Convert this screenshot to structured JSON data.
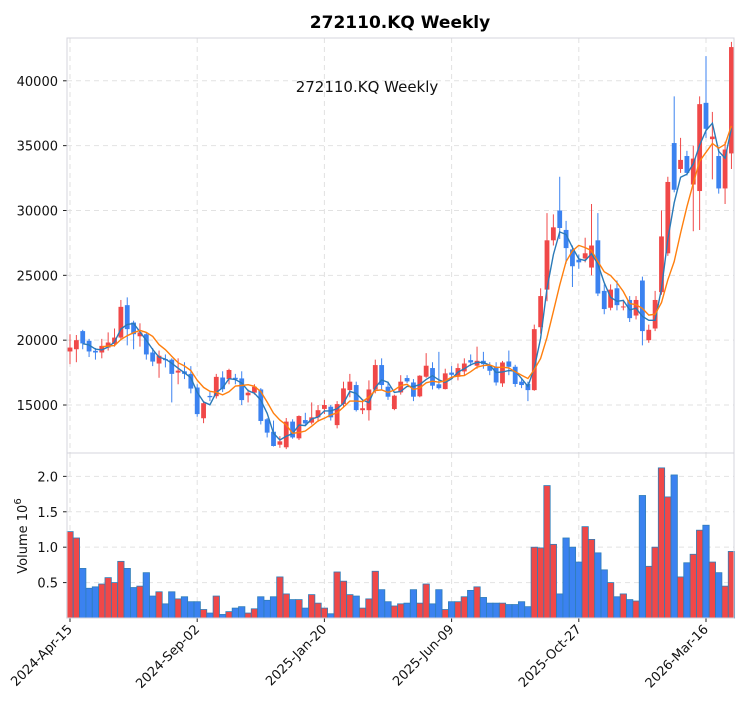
{
  "chart_data": {
    "type": "candlestick",
    "title": "272110.KQ  Weekly",
    "inner_title": "272110.KQ  Weekly",
    "colors": {
      "up": "#f04848",
      "down": "#3b82f0",
      "edge": "#2f7db8",
      "ma_short": "#2a7ab8",
      "ma_long": "#ff7f0e",
      "grid": "#e2e2e2"
    },
    "moving_averages": [
      {
        "window": 3,
        "color_key": "ma_short"
      },
      {
        "window": 6,
        "color_key": "ma_long"
      }
    ],
    "price_axis": {
      "ylim": [
        11300,
        43300
      ],
      "ticks": [
        15000,
        20000,
        25000,
        30000,
        35000,
        40000
      ],
      "tick_labels": [
        "15000",
        "20000",
        "25000",
        "30000",
        "35000",
        "40000"
      ]
    },
    "volume_axis": {
      "ylim": [
        0,
        2.33
      ],
      "ticks": [
        0.5,
        1.0,
        1.5,
        2.0
      ],
      "tick_labels": [
        "0.5",
        "1.0",
        "1.5",
        "2.0"
      ],
      "ylabel": "Volume  10",
      "ylabel_exp": "6"
    },
    "xticks": [
      {
        "index": 0,
        "label": "2024-Apr-15"
      },
      {
        "index": 20,
        "label": "2024-Sep-02"
      },
      {
        "index": 40,
        "label": "2025-Jan-20"
      },
      {
        "index": 60,
        "label": "2025-Jun-09"
      },
      {
        "index": 80,
        "label": "2025-Oct-27"
      },
      {
        "index": 100,
        "label": "2026-Mar-16"
      }
    ],
    "ohlc_fields": [
      "open",
      "high",
      "low",
      "close"
    ],
    "ohlc": [
      [
        19130,
        20460,
        18150,
        19430
      ],
      [
        19300,
        20400,
        18300,
        20000
      ],
      [
        20700,
        20800,
        19300,
        19750
      ],
      [
        19950,
        20100,
        18700,
        19130
      ],
      [
        19180,
        19400,
        18500,
        19050
      ],
      [
        19050,
        20100,
        18600,
        19560
      ],
      [
        19430,
        20600,
        19200,
        19820
      ],
      [
        19700,
        20900,
        19500,
        20200
      ],
      [
        20200,
        23100,
        20000,
        22570
      ],
      [
        22700,
        23300,
        19600,
        20850
      ],
      [
        21360,
        21500,
        19300,
        20460
      ],
      [
        20300,
        21300,
        19500,
        20600
      ],
      [
        20460,
        20600,
        18500,
        18900
      ],
      [
        19050,
        19400,
        18000,
        18350
      ],
      [
        18200,
        19200,
        17100,
        18800
      ],
      [
        18550,
        18900,
        17900,
        18460
      ],
      [
        18500,
        18600,
        15200,
        17400
      ],
      [
        17500,
        18600,
        16600,
        17650
      ],
      [
        17600,
        18300,
        17000,
        17400
      ],
      [
        17400,
        18000,
        15900,
        16270
      ],
      [
        16350,
        16600,
        14100,
        14300
      ],
      [
        13980,
        15200,
        13600,
        15140
      ],
      [
        15700,
        16000,
        15300,
        15600
      ],
      [
        15680,
        17400,
        15500,
        17170
      ],
      [
        17120,
        17600,
        16000,
        16220
      ],
      [
        17000,
        17800,
        16600,
        17700
      ],
      [
        17100,
        17400,
        16600,
        16980
      ],
      [
        17050,
        17600,
        15000,
        15380
      ],
      [
        15750,
        16200,
        15200,
        15950
      ],
      [
        15950,
        16600,
        15800,
        16410
      ],
      [
        16200,
        16300,
        13500,
        13770
      ],
      [
        13900,
        14000,
        12500,
        12870
      ],
      [
        12940,
        13800,
        11800,
        11840
      ],
      [
        11940,
        12600,
        11700,
        12200
      ],
      [
        11740,
        14000,
        11600,
        13720
      ],
      [
        13720,
        13900,
        12400,
        12500
      ],
      [
        12430,
        14200,
        12300,
        14150
      ],
      [
        13840,
        14400,
        13400,
        13580
      ],
      [
        13640,
        15200,
        13500,
        14050
      ],
      [
        14050,
        15000,
        13700,
        14600
      ],
      [
        14700,
        15400,
        14300,
        15000
      ],
      [
        14870,
        15000,
        13800,
        14050
      ],
      [
        13450,
        15300,
        13200,
        15070
      ],
      [
        15070,
        16800,
        14800,
        16280
      ],
      [
        16150,
        17400,
        15600,
        16800
      ],
      [
        16540,
        16800,
        14500,
        14610
      ],
      [
        14600,
        15400,
        14300,
        14750
      ],
      [
        14600,
        16900,
        13800,
        16200
      ],
      [
        16200,
        18500,
        15900,
        18080
      ],
      [
        18080,
        18600,
        16200,
        16540
      ],
      [
        16410,
        16800,
        15400,
        15640
      ],
      [
        14690,
        15800,
        14600,
        15720
      ],
      [
        15970,
        17300,
        15800,
        16800
      ],
      [
        17080,
        17300,
        16700,
        16820
      ],
      [
        16740,
        17000,
        15300,
        15640
      ],
      [
        15670,
        17300,
        15600,
        17260
      ],
      [
        17180,
        19000,
        17100,
        18030
      ],
      [
        17850,
        18300,
        16200,
        16490
      ],
      [
        16600,
        19100,
        16200,
        16300
      ],
      [
        16230,
        17800,
        16200,
        17440
      ],
      [
        17500,
        18000,
        17000,
        17330
      ],
      [
        17180,
        18200,
        16900,
        17850
      ],
      [
        17590,
        18600,
        17300,
        18200
      ],
      [
        18460,
        18900,
        18000,
        18280
      ],
      [
        18030,
        19500,
        17800,
        18410
      ],
      [
        18410,
        19100,
        17800,
        18150
      ],
      [
        18030,
        18300,
        17300,
        17640
      ],
      [
        17950,
        18300,
        16500,
        16740
      ],
      [
        16670,
        18400,
        16400,
        18280
      ],
      [
        18360,
        19200,
        17300,
        17950
      ],
      [
        17950,
        18100,
        16400,
        16620
      ],
      [
        16800,
        17000,
        16300,
        16540
      ],
      [
        16620,
        16800,
        15300,
        16150
      ],
      [
        16150,
        21200,
        16100,
        20850
      ],
      [
        21000,
        24000,
        20500,
        23400
      ],
      [
        23900,
        29800,
        23000,
        27700
      ],
      [
        27700,
        29700,
        27300,
        28700
      ],
      [
        30000,
        32600,
        27800,
        28650
      ],
      [
        28500,
        29200,
        25900,
        27100
      ],
      [
        27000,
        27300,
        24100,
        25700
      ],
      [
        26200,
        26600,
        25500,
        26000
      ],
      [
        26300,
        27900,
        26000,
        26700
      ],
      [
        25600,
        30500,
        25000,
        27300
      ],
      [
        27700,
        29800,
        23400,
        23600
      ],
      [
        23800,
        24300,
        22000,
        22400
      ],
      [
        22500,
        24300,
        22300,
        23900
      ],
      [
        24000,
        24600,
        22300,
        22700
      ],
      [
        22550,
        23100,
        22300,
        22600
      ],
      [
        23100,
        23400,
        21400,
        21700
      ],
      [
        21900,
        23400,
        21600,
        23100
      ],
      [
        24600,
        24900,
        19600,
        20700
      ],
      [
        20000,
        21200,
        19800,
        20800
      ],
      [
        20900,
        23800,
        20700,
        23100
      ],
      [
        23700,
        30000,
        23500,
        28000
      ],
      [
        26700,
        32600,
        26500,
        32200
      ],
      [
        35200,
        38800,
        31400,
        31600
      ],
      [
        33200,
        35600,
        32900,
        33900
      ],
      [
        34200,
        34600,
        32700,
        32900
      ],
      [
        32000,
        35000,
        28400,
        34000
      ],
      [
        31500,
        38800,
        28500,
        38200
      ],
      [
        38300,
        41900,
        35600,
        36300
      ],
      [
        35500,
        37600,
        32400,
        35700
      ],
      [
        34200,
        34900,
        31300,
        31700
      ],
      [
        31700,
        35300,
        30500,
        34700
      ],
      [
        34400,
        43000,
        33200,
        42600
      ]
    ],
    "volume_millions": [
      1.22,
      1.13,
      0.7,
      0.42,
      0.44,
      0.48,
      0.57,
      0.5,
      0.8,
      0.7,
      0.43,
      0.45,
      0.64,
      0.31,
      0.37,
      0.2,
      0.37,
      0.27,
      0.3,
      0.23,
      0.23,
      0.12,
      0.07,
      0.31,
      0.05,
      0.09,
      0.14,
      0.16,
      0.07,
      0.13,
      0.3,
      0.25,
      0.3,
      0.58,
      0.34,
      0.26,
      0.26,
      0.14,
      0.33,
      0.21,
      0.14,
      0.06,
      0.65,
      0.52,
      0.33,
      0.31,
      0.14,
      0.27,
      0.66,
      0.4,
      0.23,
      0.17,
      0.2,
      0.21,
      0.4,
      0.21,
      0.48,
      0.2,
      0.4,
      0.12,
      0.23,
      0.23,
      0.3,
      0.39,
      0.44,
      0.29,
      0.21,
      0.21,
      0.21,
      0.19,
      0.19,
      0.23,
      0.16,
      1.0,
      0.99,
      1.87,
      1.04,
      0.34,
      1.13,
      1.0,
      0.79,
      1.29,
      1.11,
      0.92,
      0.68,
      0.5,
      0.3,
      0.34,
      0.26,
      0.24,
      1.73,
      0.73,
      1.0,
      2.12,
      1.71,
      2.02,
      0.58,
      0.78,
      0.9,
      1.24,
      1.31,
      0.79,
      0.64,
      0.45,
      0.94
    ]
  }
}
